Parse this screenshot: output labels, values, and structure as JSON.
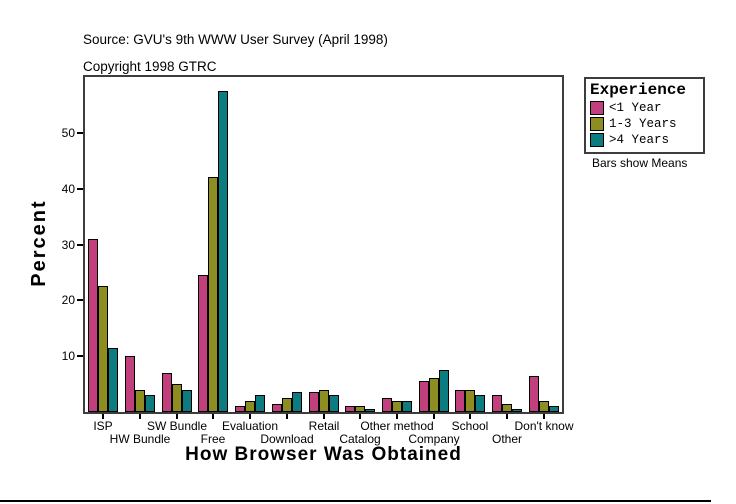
{
  "header": {
    "source_line": "Source: GVU's 9th WWW User Survey (April 1998)",
    "copyright_line": "Copyright 1998 GTRC"
  },
  "legend": {
    "title": "Experience",
    "note": "Bars show Means",
    "items": [
      {
        "label": "<1 Year",
        "color": "#c23f7e"
      },
      {
        "label": "1-3 Years",
        "color": "#8d8d21"
      },
      {
        "label": ">4 Years",
        "color": "#0d7c80"
      }
    ]
  },
  "chart_data": {
    "type": "bar",
    "title": "",
    "xlabel": "How Browser Was Obtained",
    "ylabel": "Percent",
    "categories": [
      "ISP",
      "HW Bundle",
      "SW Bundle",
      "Free",
      "Evaluation",
      "Download",
      "Retail",
      "Catalog",
      "Other method",
      "Company",
      "School",
      "Other",
      "Don't know"
    ],
    "series": [
      {
        "name": "<1 Year",
        "color": "#c23f7e",
        "values": [
          31.0,
          10.0,
          7.0,
          24.5,
          1.0,
          1.5,
          3.5,
          1.0,
          2.5,
          5.5,
          4.0,
          3.0,
          6.5
        ]
      },
      {
        "name": "1-3 Years",
        "color": "#8d8d21",
        "values": [
          22.5,
          4.0,
          5.0,
          42.0,
          2.0,
          2.5,
          4.0,
          1.0,
          2.0,
          6.0,
          4.0,
          1.5,
          2.0
        ]
      },
      {
        "name": ">4 Years",
        "color": "#0d7c80",
        "values": [
          11.5,
          3.0,
          4.0,
          57.5,
          3.0,
          3.5,
          3.0,
          0.5,
          2.0,
          7.5,
          3.0,
          0.5,
          1.0
        ]
      }
    ],
    "yticks": [
      10,
      20,
      30,
      40,
      50
    ],
    "ylim": [
      0,
      60
    ],
    "grid": false,
    "legend_position": "right",
    "note": "Bars show Means"
  }
}
